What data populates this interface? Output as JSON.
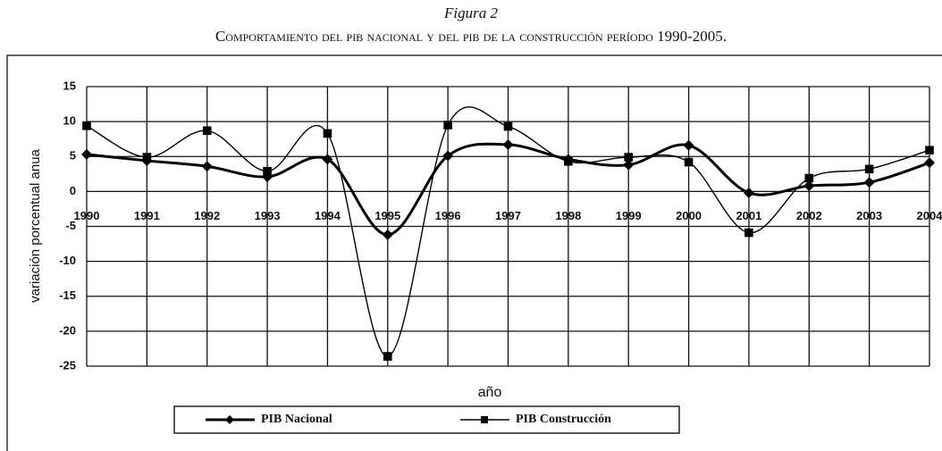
{
  "chart_data": {
    "type": "line",
    "title": "Figura 2",
    "subtitle": "Comportamiento del pib nacional y del pib de la construcción período 1990-2005.",
    "x_label": "año",
    "y_label": "variación porcentual anua",
    "categories": [
      "1990",
      "1991",
      "1992",
      "1993",
      "1994",
      "1995",
      "1996",
      "1997",
      "1998",
      "1999",
      "2000",
      "2001",
      "2002",
      "2003",
      "2004"
    ],
    "series": [
      {
        "name": "PIB Nacional",
        "color": "#000000",
        "marker": "diamond",
        "values": [
          5.3,
          4.4,
          3.6,
          2.1,
          4.6,
          -6.2,
          5.1,
          6.7,
          4.6,
          3.8,
          6.6,
          -0.2,
          0.8,
          1.3,
          4.1
        ]
      },
      {
        "name": "PIB Construcción",
        "color": "#000000",
        "marker": "square",
        "values": [
          9.4,
          4.9,
          8.7,
          2.9,
          8.3,
          -23.6,
          9.5,
          9.3,
          4.3,
          4.9,
          4.2,
          -5.9,
          1.9,
          3.2,
          5.9
        ]
      }
    ],
    "ylim": [
      -25,
      15
    ],
    "yticks": [
      15,
      10,
      5,
      0,
      -5,
      -10,
      -15,
      -20,
      -25
    ],
    "grid": true,
    "smooth": true,
    "legend": "bottom"
  }
}
